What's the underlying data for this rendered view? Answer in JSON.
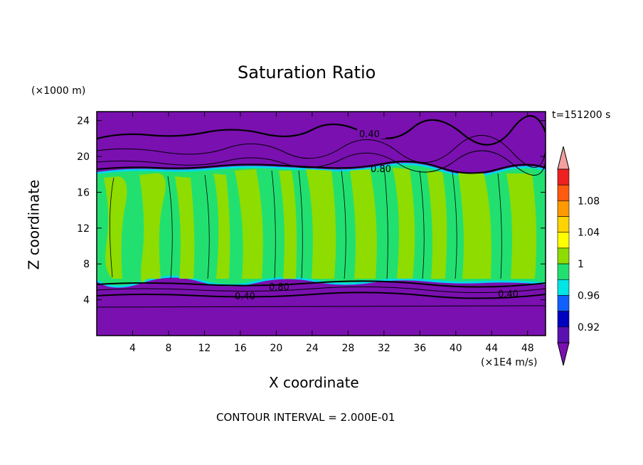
{
  "chart_data": {
    "type": "heatmap",
    "title": "Saturation Ratio",
    "time_label": "t=151200 s",
    "xlabel": "X coordinate",
    "ylabel": "Z coordinate",
    "x_unit": "(×1E4 m/s)",
    "y_unit": "(×1000 m)",
    "xlim": [
      0,
      50
    ],
    "ylim": [
      0,
      25
    ],
    "x_ticks": [
      "4",
      "8",
      "12",
      "16",
      "20",
      "24",
      "28",
      "32",
      "36",
      "40",
      "44",
      "48"
    ],
    "y_ticks": [
      "4",
      "8",
      "12",
      "16",
      "20",
      "24"
    ],
    "footer": "CONTOUR INTERVAL = 2.000E-01",
    "colorbar": {
      "labels": [
        "1.08",
        "1.04",
        "1",
        "0.96",
        "0.92"
      ],
      "colors": [
        "#f4a0a0",
        "#ee2020",
        "#ff5a10",
        "#ff9a00",
        "#ffd400",
        "#ffff00",
        "#8edc00",
        "#22e070",
        "#00e6e6",
        "#1060ff",
        "#0000c0",
        "#5a10b0",
        "#7a10b0"
      ]
    },
    "contour_labels": [
      "0.40",
      "0.80",
      "0.80",
      "0.40",
      "0.40"
    ],
    "regions": [
      {
        "name": "upper dry layer",
        "z_range": [
          18.5,
          25
        ],
        "value": "<0.90"
      },
      {
        "name": "saturated cloud layer",
        "z_range": [
          6,
          18.5
        ],
        "value": "0.98–1.02"
      },
      {
        "name": "lower dry layer",
        "z_range": [
          0,
          6
        ],
        "value": "<0.90"
      }
    ]
  }
}
